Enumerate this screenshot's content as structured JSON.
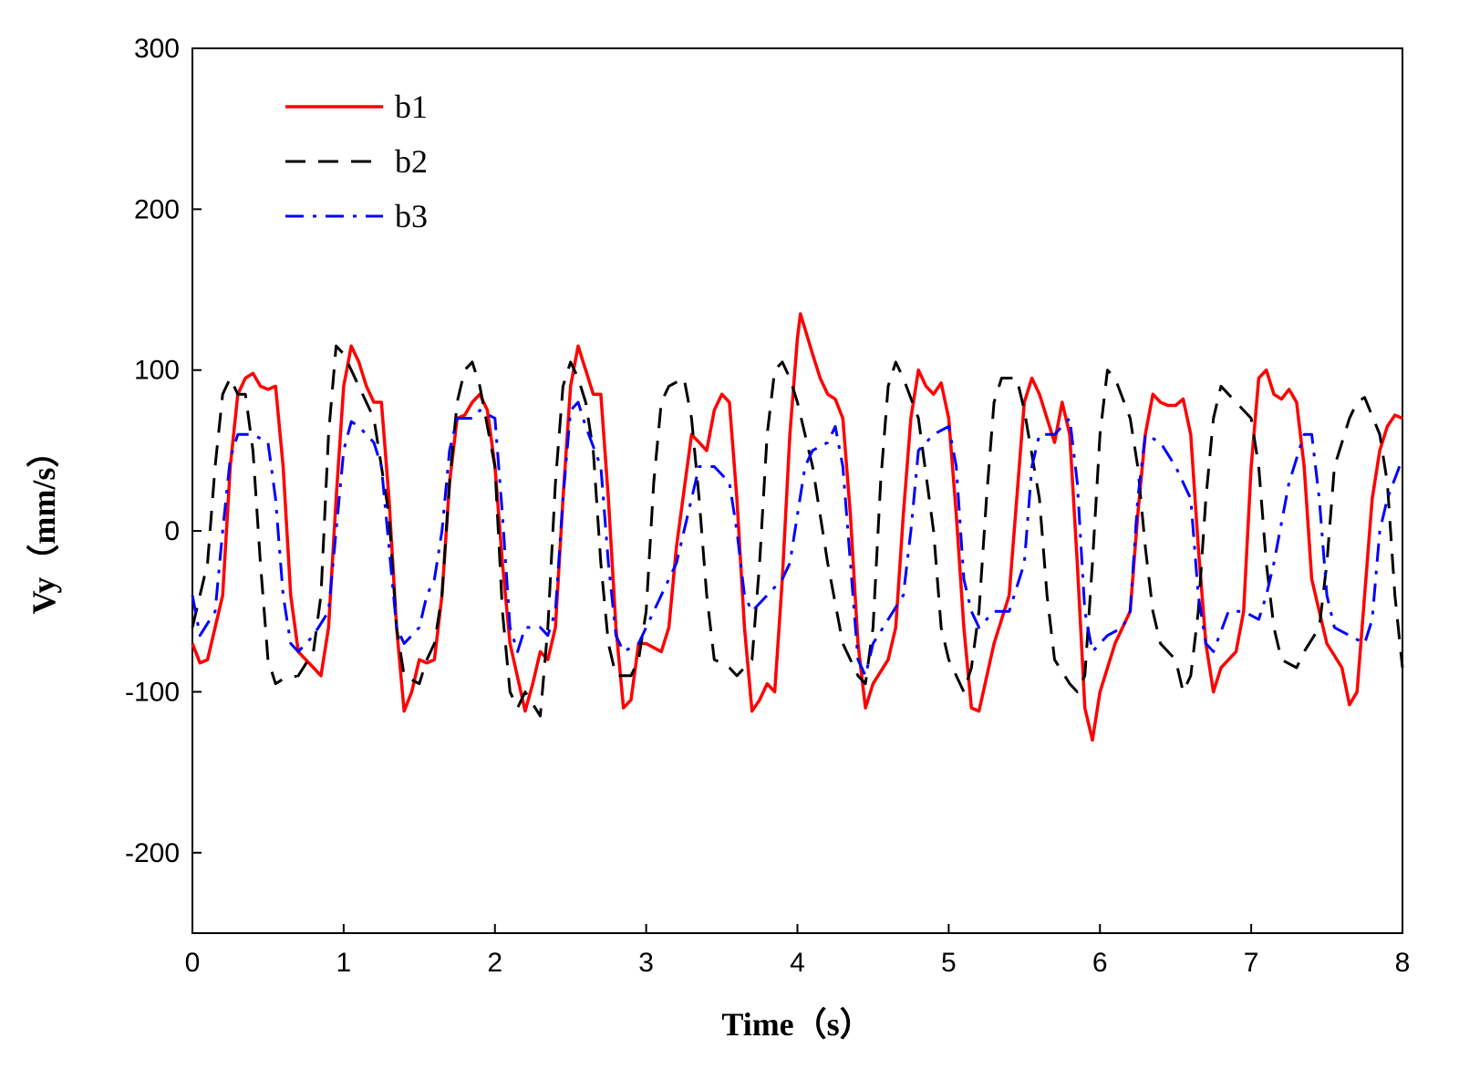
{
  "chart_data": {
    "type": "line",
    "xlabel": "Time（s）",
    "ylabel": "Vy（mm/s）",
    "xlim": [
      0,
      8
    ],
    "xticks": [
      0,
      1,
      2,
      3,
      4,
      5,
      6,
      7,
      8
    ],
    "ylim": [
      -250,
      300
    ],
    "yticks": [
      -200,
      -100,
      0,
      100,
      200,
      300
    ],
    "grid": false,
    "legend": "upper left",
    "series": [
      {
        "name": "b1",
        "color": "#ff0000",
        "dash": "solid",
        "x": [
          0,
          0.05,
          0.1,
          0.2,
          0.25,
          0.3,
          0.35,
          0.4,
          0.45,
          0.5,
          0.55,
          0.6,
          0.65,
          0.7,
          0.8,
          0.85,
          0.9,
          0.95,
          1.0,
          1.05,
          1.1,
          1.15,
          1.2,
          1.25,
          1.3,
          1.35,
          1.4,
          1.45,
          1.5,
          1.55,
          1.6,
          1.65,
          1.7,
          1.75,
          1.8,
          1.85,
          1.9,
          1.95,
          2.0,
          2.05,
          2.1,
          2.2,
          2.25,
          2.3,
          2.35,
          2.4,
          2.45,
          2.5,
          2.55,
          2.6,
          2.65,
          2.7,
          2.75,
          2.8,
          2.85,
          2.9,
          2.95,
          3.0,
          3.1,
          3.15,
          3.2,
          3.3,
          3.35,
          3.4,
          3.45,
          3.5,
          3.55,
          3.6,
          3.65,
          3.7,
          3.75,
          3.8,
          3.85,
          3.9,
          3.95,
          4.0,
          4.02,
          4.1,
          4.15,
          4.2,
          4.25,
          4.3,
          4.35,
          4.4,
          4.45,
          4.5,
          4.6,
          4.65,
          4.7,
          4.75,
          4.8,
          4.85,
          4.9,
          4.95,
          5.0,
          5.05,
          5.1,
          5.15,
          5.2,
          5.3,
          5.4,
          5.45,
          5.5,
          5.55,
          5.6,
          5.65,
          5.7,
          5.75,
          5.8,
          5.85,
          5.9,
          5.95,
          6.0,
          6.1,
          6.2,
          6.25,
          6.3,
          6.35,
          6.4,
          6.45,
          6.5,
          6.55,
          6.6,
          6.65,
          6.7,
          6.75,
          6.8,
          6.9,
          6.95,
          7.0,
          7.05,
          7.1,
          7.15,
          7.2,
          7.25,
          7.3,
          7.35,
          7.4,
          7.5,
          7.6,
          7.65,
          7.7,
          7.75,
          7.8,
          7.85,
          7.9,
          7.95,
          8.0
        ],
        "values": [
          -70,
          -82,
          -80,
          -40,
          40,
          85,
          95,
          98,
          90,
          88,
          90,
          40,
          -40,
          -75,
          -85,
          -90,
          -60,
          20,
          90,
          115,
          105,
          90,
          80,
          80,
          20,
          -60,
          -112,
          -100,
          -80,
          -82,
          -80,
          -40,
          30,
          70,
          72,
          80,
          85,
          75,
          40,
          -20,
          -70,
          -112,
          -95,
          -75,
          -80,
          -60,
          20,
          90,
          115,
          100,
          85,
          85,
          20,
          -60,
          -110,
          -105,
          -70,
          -70,
          -75,
          -60,
          -10,
          60,
          55,
          50,
          75,
          85,
          80,
          20,
          -60,
          -112,
          -105,
          -95,
          -100,
          -30,
          60,
          120,
          135,
          110,
          95,
          85,
          82,
          70,
          10,
          -70,
          -110,
          -95,
          -80,
          -60,
          10,
          70,
          100,
          90,
          85,
          92,
          70,
          10,
          -60,
          -110,
          -112,
          -70,
          -40,
          20,
          80,
          95,
          85,
          70,
          55,
          80,
          60,
          -20,
          -110,
          -130,
          -100,
          -70,
          -50,
          10,
          60,
          85,
          80,
          78,
          78,
          82,
          60,
          -10,
          -70,
          -100,
          -85,
          -75,
          -50,
          40,
          95,
          100,
          85,
          82,
          88,
          80,
          40,
          -30,
          -70,
          -85,
          -108,
          -100,
          -40,
          20,
          50,
          65,
          72,
          70
        ]
      },
      {
        "name": "b2",
        "color": "#000000",
        "dash": "dashed",
        "x": [
          0,
          0.1,
          0.15,
          0.2,
          0.25,
          0.3,
          0.35,
          0.4,
          0.45,
          0.5,
          0.55,
          0.6,
          0.7,
          0.8,
          0.85,
          0.9,
          0.95,
          1.0,
          1.05,
          1.1,
          1.2,
          1.3,
          1.35,
          1.4,
          1.5,
          1.55,
          1.6,
          1.65,
          1.7,
          1.75,
          1.8,
          1.85,
          1.9,
          2.0,
          2.05,
          2.1,
          2.15,
          2.2,
          2.3,
          2.35,
          2.4,
          2.45,
          2.5,
          2.55,
          2.6,
          2.65,
          2.7,
          2.75,
          2.8,
          2.9,
          2.95,
          3.0,
          3.05,
          3.1,
          3.15,
          3.25,
          3.3,
          3.35,
          3.4,
          3.45,
          3.5,
          3.55,
          3.6,
          3.7,
          3.75,
          3.8,
          3.85,
          3.9,
          3.95,
          4.0,
          4.1,
          4.2,
          4.3,
          4.4,
          4.45,
          4.5,
          4.55,
          4.6,
          4.65,
          4.7,
          4.8,
          4.9,
          4.95,
          5.0,
          5.1,
          5.15,
          5.2,
          5.25,
          5.3,
          5.35,
          5.45,
          5.5,
          5.6,
          5.65,
          5.7,
          5.8,
          5.85,
          5.9,
          5.95,
          6.0,
          6.05,
          6.1,
          6.2,
          6.25,
          6.3,
          6.35,
          6.4,
          6.5,
          6.55,
          6.6,
          6.65,
          6.7,
          6.75,
          6.8,
          6.85,
          7.0,
          7.05,
          7.1,
          7.15,
          7.2,
          7.3,
          7.35,
          7.45,
          7.5,
          7.55,
          7.65,
          7.7,
          7.75,
          7.85,
          7.9,
          7.95,
          8.0
        ],
        "values": [
          -60,
          -20,
          40,
          85,
          95,
          85,
          85,
          50,
          -20,
          -80,
          -95,
          -92,
          -90,
          -75,
          -40,
          60,
          115,
          110,
          100,
          90,
          70,
          10,
          -60,
          -90,
          -95,
          -80,
          -70,
          -40,
          30,
          80,
          100,
          105,
          90,
          40,
          -50,
          -100,
          -110,
          -100,
          -115,
          -60,
          30,
          90,
          105,
          95,
          80,
          50,
          -20,
          -70,
          -90,
          -90,
          -80,
          -50,
          30,
          80,
          90,
          95,
          70,
          20,
          -40,
          -80,
          -82,
          -85,
          -90,
          -80,
          -20,
          60,
          100,
          105,
          95,
          80,
          40,
          -20,
          -70,
          -90,
          -95,
          -60,
          30,
          90,
          105,
          95,
          70,
          0,
          -60,
          -80,
          -100,
          -85,
          -50,
          20,
          80,
          95,
          95,
          75,
          20,
          -40,
          -80,
          -95,
          -100,
          -90,
          -20,
          60,
          100,
          95,
          70,
          40,
          -10,
          -50,
          -70,
          -80,
          -100,
          -90,
          -50,
          20,
          70,
          90,
          85,
          70,
          40,
          -20,
          -60,
          -80,
          -85,
          -75,
          -60,
          -20,
          40,
          70,
          80,
          83,
          60,
          30,
          -40,
          -85
        ]
      },
      {
        "name": "b3",
        "color": "#0000ff",
        "dash": "dashdot",
        "x": [
          0,
          0.05,
          0.15,
          0.2,
          0.25,
          0.3,
          0.4,
          0.5,
          0.55,
          0.6,
          0.65,
          0.7,
          0.8,
          0.9,
          0.95,
          1.0,
          1.05,
          1.1,
          1.2,
          1.25,
          1.3,
          1.35,
          1.4,
          1.5,
          1.55,
          1.6,
          1.65,
          1.7,
          1.75,
          1.85,
          1.9,
          2.0,
          2.05,
          2.1,
          2.15,
          2.2,
          2.3,
          2.35,
          2.4,
          2.45,
          2.5,
          2.55,
          2.6,
          2.7,
          2.75,
          2.8,
          2.85,
          2.95,
          3.0,
          3.1,
          3.2,
          3.3,
          3.35,
          3.45,
          3.55,
          3.6,
          3.65,
          3.7,
          3.8,
          3.9,
          3.95,
          4.0,
          4.05,
          4.1,
          4.2,
          4.25,
          4.3,
          4.35,
          4.4,
          4.45,
          4.5,
          4.6,
          4.7,
          4.75,
          4.8,
          4.9,
          5.0,
          5.05,
          5.1,
          5.15,
          5.2,
          5.3,
          5.4,
          5.5,
          5.55,
          5.6,
          5.7,
          5.8,
          5.85,
          5.9,
          5.95,
          6.05,
          6.15,
          6.2,
          6.25,
          6.3,
          6.4,
          6.5,
          6.6,
          6.65,
          6.7,
          6.75,
          6.85,
          6.95,
          7.05,
          7.1,
          7.15,
          7.25,
          7.35,
          7.4,
          7.45,
          7.5,
          7.55,
          7.65,
          7.75,
          7.8,
          7.85,
          7.9,
          8.0
        ],
        "values": [
          -40,
          -65,
          -50,
          0,
          45,
          60,
          60,
          55,
          20,
          -40,
          -70,
          -75,
          -65,
          -50,
          0,
          50,
          68,
          65,
          55,
          40,
          -10,
          -60,
          -70,
          -60,
          -40,
          -30,
          0,
          50,
          70,
          70,
          75,
          70,
          10,
          -60,
          -75,
          -60,
          -60,
          -65,
          -50,
          20,
          75,
          80,
          65,
          40,
          -20,
          -65,
          -75,
          -70,
          -60,
          -40,
          -20,
          20,
          40,
          40,
          30,
          0,
          -40,
          -50,
          -40,
          -30,
          -20,
          10,
          40,
          50,
          55,
          65,
          40,
          -20,
          -80,
          -90,
          -70,
          -55,
          -40,
          0,
          50,
          60,
          65,
          40,
          -30,
          -50,
          -60,
          -50,
          -50,
          -20,
          40,
          60,
          60,
          70,
          30,
          -50,
          -75,
          -65,
          -60,
          -50,
          20,
          60,
          55,
          40,
          20,
          -40,
          -70,
          -75,
          -50,
          -50,
          -55,
          -40,
          -20,
          30,
          60,
          60,
          20,
          -40,
          -60,
          -65,
          -70,
          -55,
          0,
          20,
          45
        ]
      }
    ]
  }
}
